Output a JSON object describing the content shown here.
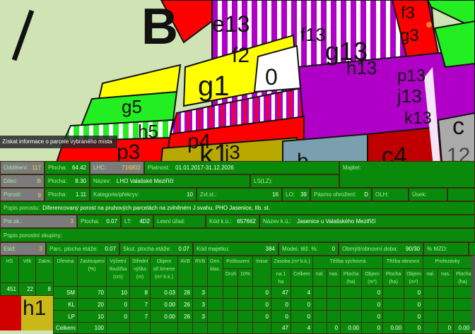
{
  "map": {
    "labels": [
      "B",
      "e13",
      "f13",
      "g13",
      "h13",
      "p13",
      "j13",
      "k13",
      "f3",
      "g3",
      "f2",
      "g1",
      "0",
      "g5",
      "h5",
      "p3",
      "p4",
      "j3",
      "k1",
      "c4",
      "c",
      "12",
      "h1",
      "b"
    ],
    "colors": {
      "background": "#cfe3b5",
      "yellow": "#ffff00",
      "red": "#ff0000",
      "purple": "#b000c8",
      "green": "#22ee22",
      "white": "#ffffff"
    }
  },
  "tooltip": "Získat informace o parcele vybraného místa",
  "panel": {
    "oddeleni": {
      "label": "Oddělení:",
      "value": "117"
    },
    "plocha1": {
      "label": "Plocha:",
      "value": "64.42"
    },
    "lhc": {
      "label": "LHC:",
      "value": "716802"
    },
    "platnost": {
      "label": "Platnost:",
      "value": "01.01.2017-31.12.2026"
    },
    "majitel": {
      "label": "Majitel:"
    },
    "dilec": {
      "label": "Dílec:",
      "value": "B"
    },
    "plocha2": {
      "label": "Plocha:",
      "value": "8.30"
    },
    "nazev": {
      "label": "Název:",
      "value": "LHO Valašské Meziříčí"
    },
    "ls": {
      "label": "LS(LZ):"
    },
    "porost": {
      "label": "Porost:",
      "value": "g"
    },
    "plocha3": {
      "label": "Plocha:",
      "value": "1.11"
    },
    "kategorie": {
      "label": "Kategorie/překryv:",
      "value": "10"
    },
    "zvlst": {
      "label": "Zvl.st.:",
      "value": "16"
    },
    "lo": {
      "label": "LO:",
      "value": "39"
    },
    "pasmo": {
      "label": "Pásmo ohrožení:",
      "value": "D"
    },
    "olh": {
      "label": "OLH:"
    },
    "usek": {
      "label": "Úsek:"
    },
    "popis": {
      "label": "Popis porostu:",
      "value": "Diferencovaný porost na pruhových parcelách na zvlněném J svahu. PHO Jasenice, IIb. st."
    },
    "porsk": {
      "label": "Por.sk.:",
      "value": "3"
    },
    "plocha4": {
      "label": "Plocha:",
      "value": "0.07"
    },
    "lt": {
      "label": "LT:",
      "value": "4D2"
    },
    "lesniurad": {
      "label": "Lesní úřad:"
    },
    "kodku": {
      "label": "Kód k.ú.:",
      "value": "657662"
    },
    "nazevku": {
      "label": "Název k.ú.:",
      "value": "Jasenice u Valašského Meziříčí"
    },
    "popisskupiny": {
      "label": "Popis porostní skupiny:"
    },
    "etaz": {
      "label": "Etáž:",
      "value": "3"
    },
    "parcplocha": {
      "label": "Parc. plocha etáže:",
      "value": "0.07"
    },
    "skutplocha": {
      "label": "Skut. plocha etáže:",
      "value": "0.07"
    },
    "kodmajetku": {
      "label": "Kód majetku:",
      "value": "384"
    },
    "modeltez": {
      "label": "Model. těž. %:",
      "value": "0"
    },
    "obmyti": {
      "label": "Obmýtí/obnovní doba:",
      "value": "90/30"
    },
    "mzd": {
      "label": "% MZD:"
    }
  },
  "left_table": {
    "headers": [
      "HS",
      "Věk",
      "Zakm."
    ],
    "row": [
      "451",
      "22",
      "8"
    ]
  },
  "main_table": {
    "headers": {
      "drevina": "Dřevina",
      "zastoupeni": "Zastoupení (%)",
      "vycetni": "Výčetní tloušťka (cm)",
      "stredni": "Střední výška (m)",
      "objem": "Objem stř.kmene (m³ b.k.)",
      "avb": "AVB",
      "rvb": "RVB",
      "gen": "Gen. klas.",
      "poskozeni": "Poškození",
      "druh": "Druh",
      "p10": "10%",
      "imise": "Imise",
      "zasoba": "Zásoba (m³ b.k.)",
      "na1ha": "na 1 ha",
      "celkem": "Celkem",
      "tezbav": "Těžba výchovná",
      "tezbao": "Těžba obnovní",
      "profezavky": "Prořezávky",
      "nal": "nal.",
      "nas": "nas.",
      "plocha": "Plocha (ha)",
      "objemm3": "Objem (m³)"
    },
    "rows": [
      [
        "SM",
        "70",
        "10",
        "8",
        "0.03",
        "28",
        "3",
        "",
        "",
        "",
        "0",
        "47",
        "4",
        "",
        "",
        "",
        "0",
        "",
        "0",
        "",
        "",
        ""
      ],
      [
        "KL",
        "20",
        "0",
        "7",
        "0.00",
        "26",
        "3",
        "",
        "",
        "",
        "0",
        "0",
        "0",
        "",
        "",
        "",
        "0",
        "",
        "0",
        "",
        "",
        ""
      ],
      [
        "LP",
        "10",
        "0",
        "7",
        "0.00",
        "26",
        "3",
        "",
        "",
        "",
        "0",
        "0",
        "0",
        "",
        "",
        "",
        "0",
        "",
        "0",
        "",
        "",
        ""
      ]
    ],
    "total": [
      "Celkem:",
      "100",
      "",
      "",
      "",
      "",
      "",
      "",
      "",
      "",
      "",
      "47",
      "4",
      "",
      "0",
      "0.00",
      "0",
      "0.00",
      "0",
      "",
      "0",
      "0.00"
    ]
  }
}
